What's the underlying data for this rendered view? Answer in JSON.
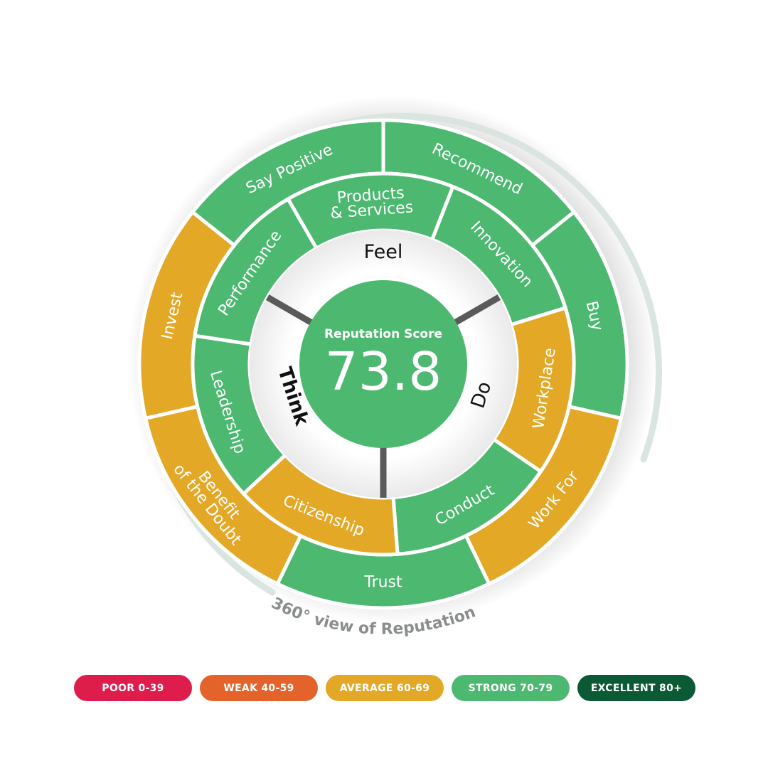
{
  "colors": {
    "strong": "#4cb870",
    "average": "#e3a826",
    "poor": "#df1d4d",
    "weak": "#e3632b",
    "excellent": "#0b5a35"
  },
  "center": {
    "title": "Reputation Score",
    "score": "73.8"
  },
  "dimensions": [
    "Feel",
    "Do",
    "Think"
  ],
  "middle_ring": [
    {
      "label": "Products\n& Services",
      "rating": "strong"
    },
    {
      "label": "Innovation",
      "rating": "strong"
    },
    {
      "label": "Workplace",
      "rating": "average"
    },
    {
      "label": "Conduct",
      "rating": "strong"
    },
    {
      "label": "Citizenship",
      "rating": "average"
    },
    {
      "label": "Leadership",
      "rating": "strong"
    },
    {
      "label": "Performance",
      "rating": "strong"
    }
  ],
  "outer_ring": [
    {
      "label": "Recommend",
      "rating": "strong"
    },
    {
      "label": "Buy",
      "rating": "strong"
    },
    {
      "label": "Work For",
      "rating": "average"
    },
    {
      "label": "Trust",
      "rating": "strong"
    },
    {
      "label": "Benefit\nof the Doubt",
      "rating": "average"
    },
    {
      "label": "Invest",
      "rating": "average"
    },
    {
      "label": "Say Positive",
      "rating": "strong"
    }
  ],
  "arc_caption": "360° view of Reputation",
  "legend": [
    {
      "label": "POOR 0-39",
      "color": "#df1d4d"
    },
    {
      "label": "WEAK 40-59",
      "color": "#e3632b"
    },
    {
      "label": "AVERAGE 60-69",
      "color": "#e3a826"
    },
    {
      "label": "STRONG 70-79",
      "color": "#4cb870"
    },
    {
      "label": "EXCELLENT 80+",
      "color": "#0b5a35"
    }
  ]
}
